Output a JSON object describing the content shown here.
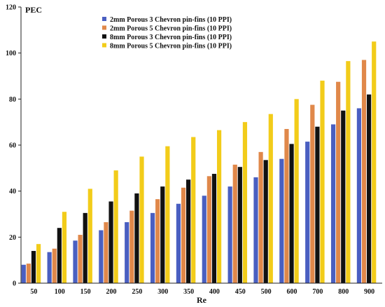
{
  "chart_data": {
    "type": "bar",
    "title": "",
    "xlabel": "Re",
    "ylabel": "PEC",
    "ylim": [
      0,
      120
    ],
    "yticks": [
      0,
      20,
      40,
      60,
      80,
      100,
      120
    ],
    "grid": false,
    "legend_position": "top-left",
    "categories": [
      "50",
      "100",
      "150",
      "200",
      "250",
      "300",
      "350",
      "400",
      "450",
      "500",
      "600",
      "700",
      "800",
      "900"
    ],
    "series": [
      {
        "name": "2mm Porous 3 Chevron pin-fins (10 PPI)",
        "color": "#4a5fc1",
        "values": [
          8,
          13.5,
          18.5,
          23,
          26.5,
          30.5,
          34.5,
          38,
          42,
          46,
          54,
          61.5,
          69,
          76
        ]
      },
      {
        "name": "2mm Porous 5 Chevron pin-fins (10 PPI)",
        "color": "#e0884a",
        "values": [
          8.5,
          15,
          21,
          26.5,
          31.5,
          36.5,
          41.5,
          46.5,
          51.5,
          57,
          67,
          77.5,
          87.5,
          97
        ]
      },
      {
        "name": "8mm Porous 3 Chevron pin-fins (10 PPI)",
        "color": "#111111",
        "values": [
          14,
          24,
          30.5,
          35.5,
          39,
          42,
          45,
          47.5,
          50.5,
          53.5,
          60.5,
          68,
          75,
          82
        ]
      },
      {
        "name": "8mm Porous 5 Chevron pin-fins (10 PPI)",
        "color": "#f2cc1a",
        "values": [
          17,
          31,
          41,
          49,
          55,
          59.5,
          63.5,
          66.5,
          70,
          73.5,
          80,
          88,
          96.5,
          105
        ]
      }
    ]
  }
}
